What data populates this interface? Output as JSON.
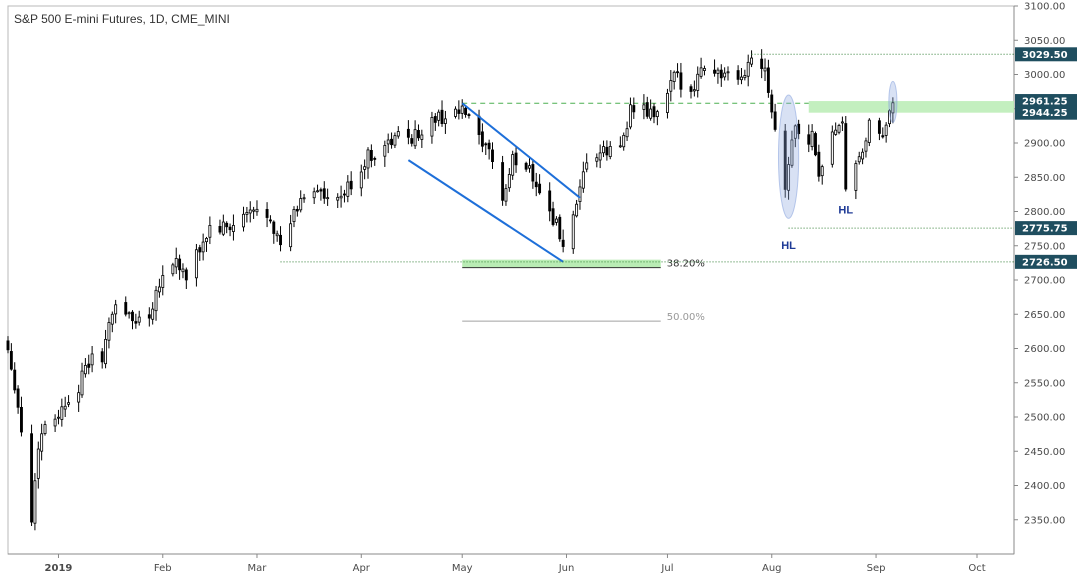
{
  "chart_data": {
    "type": "candlestick",
    "title": "S&P 500 E-mini Futures, 1D, CME_MINI",
    "ylim": [
      2300,
      3100
    ],
    "y_ticks": [
      2350,
      2400,
      2450,
      2500,
      2550,
      2600,
      2650,
      2700,
      2750,
      2800,
      2850,
      2900,
      2950,
      3000,
      3050,
      3100
    ],
    "y_tick_labels": [
      "2350.00",
      "2400.00",
      "2450.00",
      "2500.00",
      "2550.00",
      "2600.00",
      "2650.00",
      "2700.00",
      "2750.00",
      "2800.00",
      "2850.00",
      "2900.00",
      "2950.00",
      "3000.00",
      "3050.00",
      "3100.00"
    ],
    "x_start": "2018-12-17",
    "x_end": "2019-10-12",
    "x_ticks": [
      {
        "date": "2019-01-01",
        "label": "2019",
        "bold": true
      },
      {
        "date": "2019-02-01",
        "label": "Feb"
      },
      {
        "date": "2019-03-01",
        "label": "Mar"
      },
      {
        "date": "2019-04-01",
        "label": "Apr"
      },
      {
        "date": "2019-05-01",
        "label": "May"
      },
      {
        "date": "2019-06-01",
        "label": "Jun"
      },
      {
        "date": "2019-07-01",
        "label": "Jul"
      },
      {
        "date": "2019-08-01",
        "label": "Aug"
      },
      {
        "date": "2019-09-01",
        "label": "Sep"
      },
      {
        "date": "2019-10-01",
        "label": "Oct"
      }
    ],
    "close_path": [
      [
        "2018-12-17",
        2600
      ],
      [
        "2018-12-19",
        2550
      ],
      [
        "2018-12-21",
        2480
      ],
      [
        "2018-12-24",
        2350
      ],
      [
        "2018-12-26",
        2460
      ],
      [
        "2018-12-28",
        2490
      ],
      [
        "2019-01-02",
        2510
      ],
      [
        "2019-01-04",
        2530
      ],
      [
        "2019-01-07",
        2545
      ],
      [
        "2019-01-10",
        2580
      ],
      [
        "2019-01-14",
        2590
      ],
      [
        "2019-01-18",
        2670
      ],
      [
        "2019-01-23",
        2640
      ],
      [
        "2019-01-28",
        2650
      ],
      [
        "2019-01-31",
        2700
      ],
      [
        "2019-02-05",
        2730
      ],
      [
        "2019-02-08",
        2700
      ],
      [
        "2019-02-12",
        2745
      ],
      [
        "2019-02-15",
        2775
      ],
      [
        "2019-02-21",
        2775
      ],
      [
        "2019-02-26",
        2795
      ],
      [
        "2019-03-01",
        2800
      ],
      [
        "2019-03-05",
        2795
      ],
      [
        "2019-03-08",
        2745
      ],
      [
        "2019-03-12",
        2795
      ],
      [
        "2019-03-15",
        2825
      ],
      [
        "2019-03-19",
        2835
      ],
      [
        "2019-03-22",
        2810
      ],
      [
        "2019-03-26",
        2820
      ],
      [
        "2019-03-29",
        2840
      ],
      [
        "2019-04-03",
        2880
      ],
      [
        "2019-04-08",
        2895
      ],
      [
        "2019-04-12",
        2910
      ],
      [
        "2019-04-17",
        2910
      ],
      [
        "2019-04-23",
        2935
      ],
      [
        "2019-04-30",
        2945
      ],
      [
        "2019-05-03",
        2940
      ],
      [
        "2019-05-07",
        2890
      ],
      [
        "2019-05-10",
        2880
      ],
      [
        "2019-05-13",
        2815
      ],
      [
        "2019-05-16",
        2875
      ],
      [
        "2019-05-21",
        2865
      ],
      [
        "2019-05-24",
        2830
      ],
      [
        "2019-05-29",
        2780
      ],
      [
        "2019-05-31",
        2750
      ],
      [
        "2019-06-04",
        2800
      ],
      [
        "2019-06-07",
        2875
      ],
      [
        "2019-06-12",
        2885
      ],
      [
        "2019-06-17",
        2895
      ],
      [
        "2019-06-20",
        2950
      ],
      [
        "2019-06-24",
        2945
      ],
      [
        "2019-06-28",
        2940
      ],
      [
        "2019-07-03",
        2995
      ],
      [
        "2019-07-08",
        2980
      ],
      [
        "2019-07-12",
        3015
      ],
      [
        "2019-07-17",
        3000
      ],
      [
        "2019-07-22",
        2985
      ],
      [
        "2019-07-26",
        3025
      ],
      [
        "2019-07-30",
        3015
      ],
      [
        "2019-08-01",
        2950
      ],
      [
        "2019-08-05",
        2840
      ],
      [
        "2019-08-08",
        2930
      ],
      [
        "2019-08-12",
        2890
      ],
      [
        "2019-08-13",
        2925
      ],
      [
        "2019-08-15",
        2850
      ],
      [
        "2019-08-19",
        2920
      ],
      [
        "2019-08-22",
        2920
      ],
      [
        "2019-08-23",
        2840
      ],
      [
        "2019-08-27",
        2870
      ],
      [
        "2019-08-30",
        2925
      ],
      [
        "2019-09-03",
        2900
      ],
      [
        "2019-09-05",
        2955
      ],
      [
        "2019-09-06",
        2965
      ]
    ],
    "price_tags": [
      {
        "value": 3029.5,
        "label": "3029.50",
        "color": "#1f4e5f",
        "line": "dotted-green",
        "from": "2019-07-26"
      },
      {
        "value": 2961.25,
        "label": "2961.25",
        "color": "#1f4e5f",
        "line": "none"
      },
      {
        "value": 2944.25,
        "label": "2944.25",
        "color": "#1f4e5f",
        "line": "none"
      },
      {
        "value": 2775.75,
        "label": "2775.75",
        "color": "#1f4e5f",
        "line": "dotted-green",
        "from": "2019-08-06"
      },
      {
        "value": 2726.5,
        "label": "2726.50",
        "color": "#1f4e5f",
        "line": "dotted-green",
        "from": "2019-03-08"
      }
    ],
    "resistance_zone": {
      "from": "2019-08-12",
      "y1": 2944.25,
      "y2": 2961.25,
      "color": "#b9ecb4"
    },
    "dashed_resistance": {
      "value": 2958,
      "from": "2019-05-01",
      "to": "2019-08-12"
    },
    "channel_lines": [
      {
        "p1": [
          "2019-05-01",
          2958
        ],
        "p2": [
          "2019-06-05",
          2820
        ]
      },
      {
        "p1": [
          "2019-04-15",
          2875
        ],
        "p2": [
          "2019-05-31",
          2726.5
        ]
      }
    ],
    "fib_levels": [
      {
        "label": "38.20%",
        "value": 2718,
        "from": "2019-05-01",
        "to": "2019-06-29",
        "color": "#333333",
        "fill": "#b9ecb4"
      },
      {
        "label": "50.00%",
        "value": 2640,
        "from": "2019-05-01",
        "to": "2019-06-29",
        "color": "#a0a0a0"
      }
    ],
    "annotations": [
      {
        "text": "HL",
        "date": "2019-08-06",
        "value": 2745
      },
      {
        "text": "HL",
        "date": "2019-08-23",
        "value": 2797
      }
    ],
    "highlight_ellipses": [
      {
        "date": "2019-08-06",
        "value": 2880,
        "rx_days": 3,
        "ry_value": 90
      },
      {
        "date": "2019-09-06",
        "value": 2960,
        "rx_days": 1.2,
        "ry_value": 30
      }
    ],
    "colors": {
      "bull": "#ffffff",
      "bear": "#000000",
      "wick": "#000000",
      "channel": "#1e6fd9",
      "tag": "#1f4e5f",
      "grid_axis": "#b8b8b8"
    }
  }
}
